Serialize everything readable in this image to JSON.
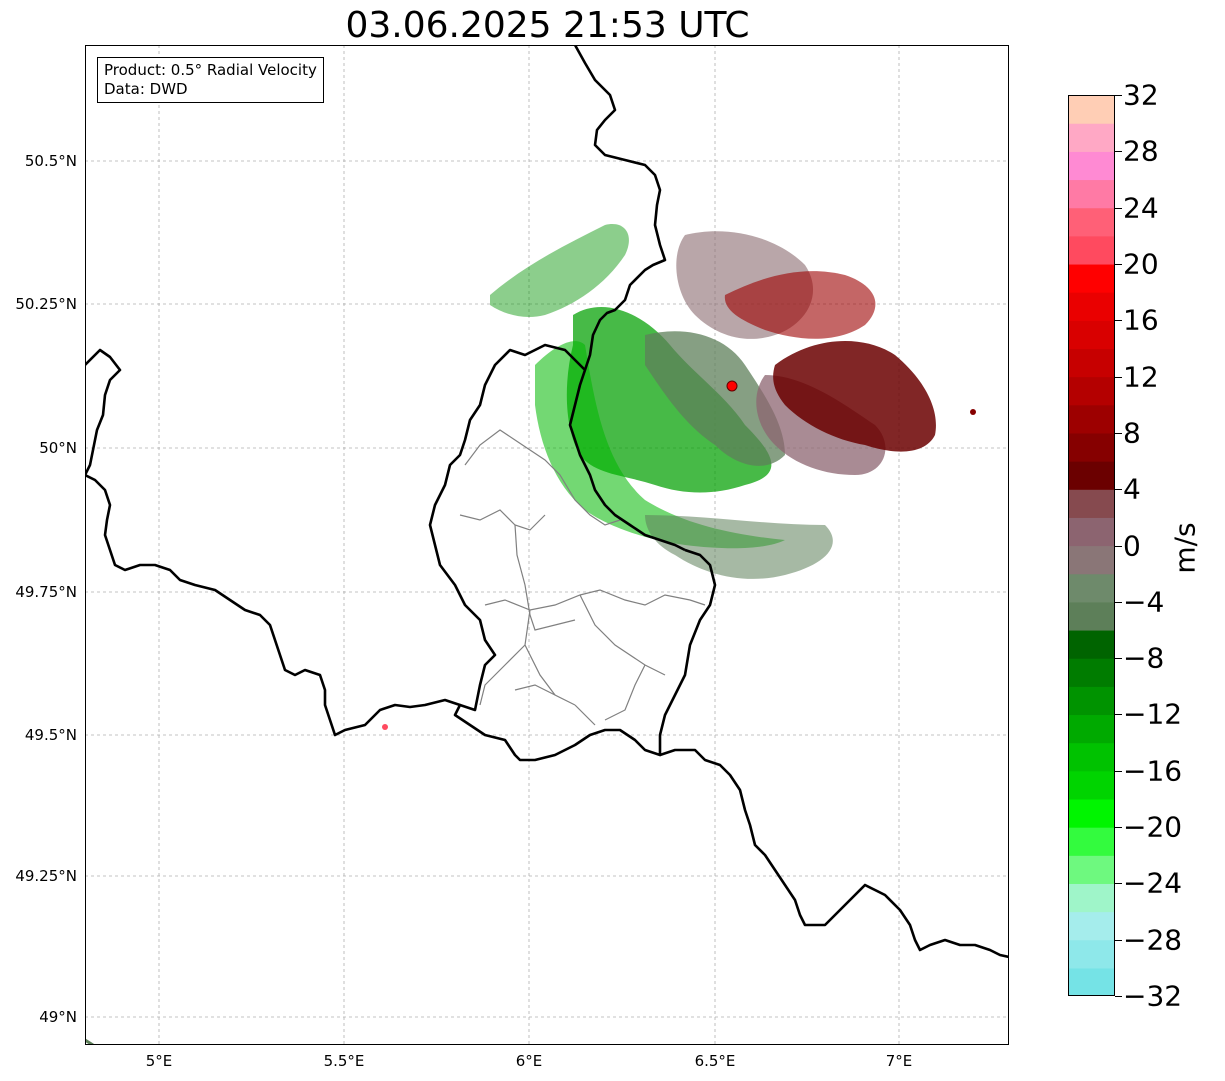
{
  "title": "03.06.2025 21:53 UTC",
  "info": {
    "product": "Product: 0.5° Radial Velocity",
    "data": "Data: DWD"
  },
  "lat_labels": [
    "50.5°N",
    "50.25°N",
    "50°N",
    "49.75°N",
    "49.5°N",
    "49.25°N",
    "49°N"
  ],
  "lon_labels": [
    "5°E",
    "5.5°E",
    "6°E",
    "6.5°E",
    "7°E"
  ],
  "map_extent": {
    "lon": [
      4.8,
      7.3
    ],
    "lat": [
      48.95,
      50.7
    ]
  },
  "radar_site": {
    "lon": 6.55,
    "lat": 50.11,
    "color": "#ff0000"
  },
  "colorbar": {
    "label": "m/s",
    "ticks": [
      "32",
      "28",
      "24",
      "20",
      "16",
      "12",
      "8",
      "4",
      "0",
      "−4",
      "−8",
      "−12",
      "−16",
      "−20",
      "−24",
      "−28",
      "−32"
    ],
    "range": [
      -32,
      32
    ],
    "colors": [
      "#75e3e6",
      "#8ee8ea",
      "#a5edec",
      "#9ff5c9",
      "#6ef97f",
      "#33fb3e",
      "#00f500",
      "#00d400",
      "#00c200",
      "#00aa00",
      "#009300",
      "#007c00",
      "#006400",
      "#5d7f59",
      "#6e8a6b",
      "#8a7677",
      "#8c6470",
      "#864a4f",
      "#6b0000",
      "#860000",
      "#9d0000",
      "#b40000",
      "#c70000",
      "#d90000",
      "#ea0000",
      "#ff0000",
      "#ff4a5f",
      "#ff6077",
      "#ff7aa5",
      "#ff8ad3",
      "#ffa8c5",
      "#ffceb5"
    ]
  },
  "colors": {
    "border": "#000000",
    "admin": "#808080",
    "grid": "#b0b0b0"
  }
}
